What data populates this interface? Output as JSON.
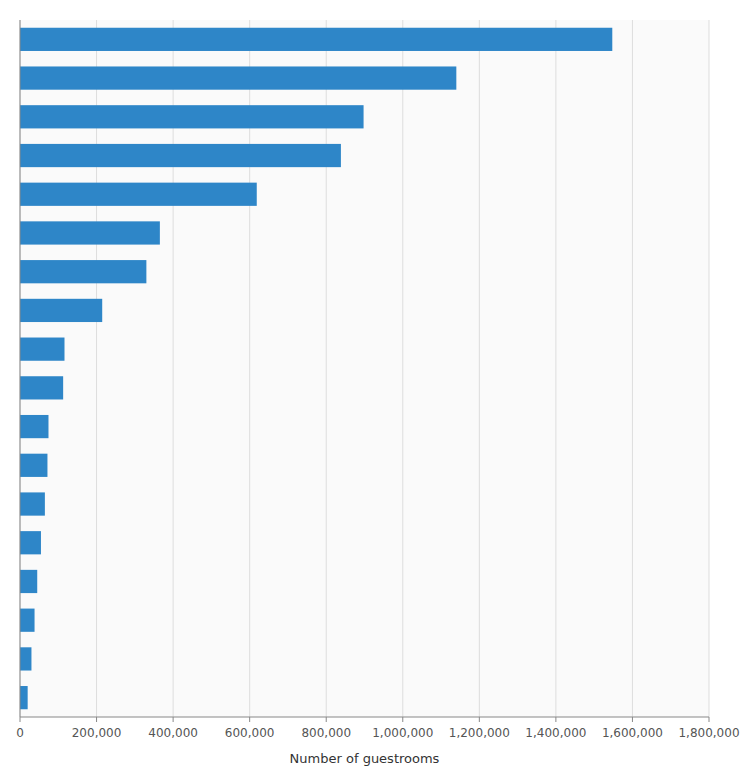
{
  "chart_data": {
    "type": "bar",
    "orientation": "horizontal",
    "categories": [
      null,
      null,
      null,
      null,
      null,
      null,
      null,
      null,
      null,
      null,
      null,
      null,
      null,
      null,
      null,
      null,
      null,
      null
    ],
    "values": [
      1547340,
      1139901,
      897567,
      838367,
      618523,
      365399,
      330161,
      214772,
      116246,
      112728,
      74419,
      71706,
      65000,
      54754,
      45000,
      38000,
      29924,
      20000
    ],
    "color": "#2e86c8",
    "xlabel": "Number of guestrooms",
    "xlim": [
      0,
      1800000
    ],
    "xticks": [
      0,
      {
        "value": 200000,
        "label": "200,000"
      },
      {
        "value": 400000,
        "label": "400,000"
      },
      {
        "value": 600000,
        "label": "600,000"
      },
      {
        "value": 800000,
        "label": "800,000"
      },
      {
        "value": 1000000,
        "label": "1,000,000"
      },
      {
        "value": 1200000,
        "label": "1,200,000"
      },
      {
        "value": 1400000,
        "label": "1,400,000"
      },
      {
        "value": 1600000,
        "label": "1,600,000"
      },
      {
        "value": 1800000,
        "label": "1,800,000"
      }
    ],
    "grid": true,
    "tick_labels": "x"
  }
}
